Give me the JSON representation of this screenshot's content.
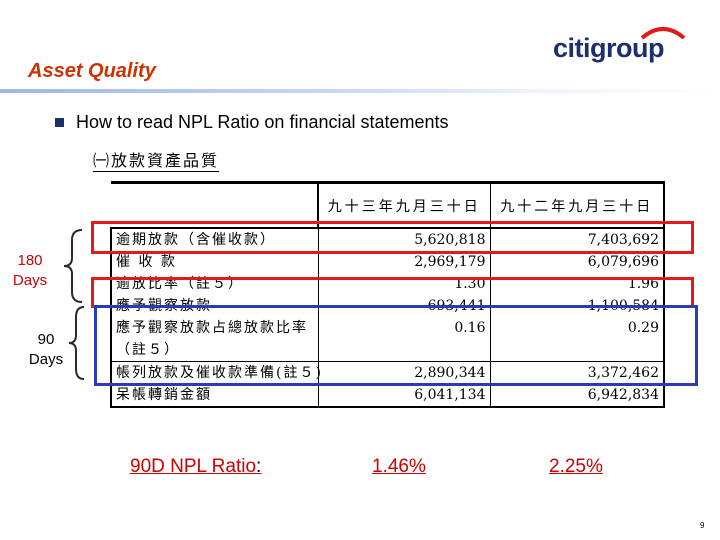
{
  "header": {
    "title": "Asset Quality",
    "logo_text": "citigroup"
  },
  "bullet": {
    "text": "How to read NPL Ratio on financial statements"
  },
  "statement": {
    "subheading": "㈠放款資產品質",
    "columns": [
      "九十三年九月三十日",
      "九十二年九月三十日"
    ],
    "rows": [
      {
        "label": "逾期放款（含催收款）",
        "v1": "5,620,818",
        "v2": "7,403,692"
      },
      {
        "label": "催 收 款",
        "v1": "2,969,179",
        "v2": "6,079,696"
      },
      {
        "label": "逾放比率（註５）",
        "v1": "1.30",
        "v2": "1.96"
      },
      {
        "label": "應予觀察放款",
        "v1": "693,441",
        "v2": "1,100,584"
      },
      {
        "label": "應予觀察放款占總放款比率",
        "v1": "0.16",
        "v2": "0.29"
      },
      {
        "label": "（註５）",
        "v1": "",
        "v2": ""
      },
      {
        "label": "帳列放款及催收款準備(註５)",
        "v1": "2,890,344",
        "v2": "3,372,462"
      },
      {
        "label": "呆帳轉銷金額",
        "v1": "6,041,134",
        "v2": "6,942,834"
      }
    ]
  },
  "side_labels": {
    "l180_line1": "180",
    "l180_line2": "Days",
    "l90_line1": "90",
    "l90_line2": "Days"
  },
  "ratio_row": {
    "label": "90D NPL Ratio",
    "colon": ":",
    "value_1": "1.46%",
    "value_2": "2.25%"
  },
  "page_number": "9",
  "colors": {
    "title": "#cc3300",
    "logo": "#1d2f6e",
    "arc": "#e11a1a",
    "red_box": "#e11a1a",
    "blue_box": "#2b3bb8",
    "ratio": "#cc0000"
  }
}
